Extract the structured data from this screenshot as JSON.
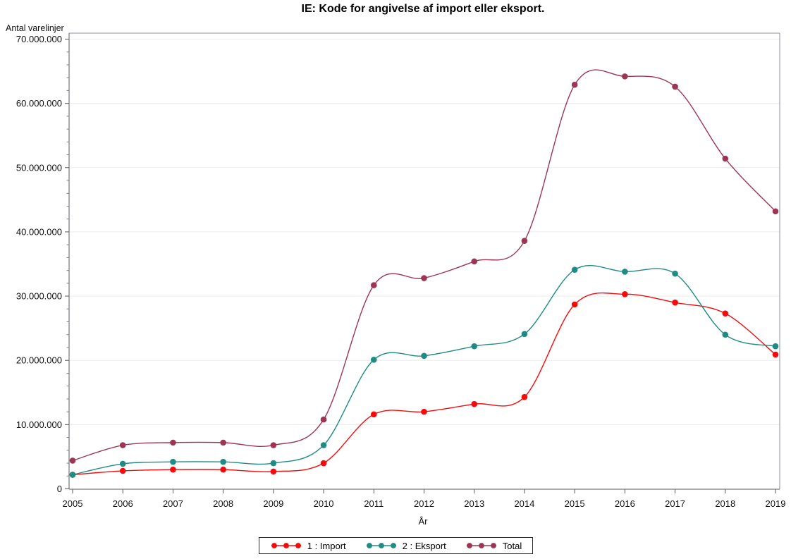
{
  "chart_data": {
    "type": "line",
    "title": "IE: Kode for angivelse af import eller eksport.",
    "xlabel": "År",
    "ylabel": "Antal varelinjer",
    "x": [
      2005,
      2006,
      2007,
      2008,
      2009,
      2010,
      2011,
      2012,
      2013,
      2014,
      2015,
      2016,
      2017,
      2018,
      2019
    ],
    "series": [
      {
        "id": "import",
        "name": "1 : Import",
        "color": "#f40b0b",
        "values": [
          2200000,
          2800000,
          3000000,
          3000000,
          2700000,
          4000000,
          11600000,
          12000000,
          13200000,
          14300000,
          28700000,
          30300000,
          29000000,
          27300000,
          20900000
        ]
      },
      {
        "id": "eksport",
        "name": "2 : Eksport",
        "color": "#1e8c84",
        "values": [
          2200000,
          3900000,
          4200000,
          4200000,
          4000000,
          6800000,
          20100000,
          20700000,
          22200000,
          24100000,
          34100000,
          33800000,
          33500000,
          24000000,
          22200000
        ]
      },
      {
        "id": "total",
        "name": "Total",
        "color": "#9d3554",
        "values": [
          4400000,
          6800000,
          7200000,
          7200000,
          6800000,
          10800000,
          31700000,
          32800000,
          35400000,
          38600000,
          62900000,
          64200000,
          62600000,
          51400000,
          43200000
        ]
      }
    ],
    "ylim": [
      0,
      70000000
    ],
    "y_tick_step": 10000000,
    "y_minor_tick_step": 2000000,
    "y_tick_labels": [
      "0",
      "10.000.000",
      "20.000.000",
      "30.000.000",
      "40.000.000",
      "50.000.000",
      "60.000.000",
      "70.000.000"
    ],
    "x_tick_labels": [
      "2005",
      "2006",
      "2007",
      "2008",
      "2009",
      "2010",
      "2011",
      "2012",
      "2013",
      "2014",
      "2015",
      "2016",
      "2017",
      "2018",
      "2019"
    ],
    "grid": "horizontal-majors",
    "legend_position": "bottom-center",
    "marker": "filled-circle",
    "smooth_spline": true
  }
}
